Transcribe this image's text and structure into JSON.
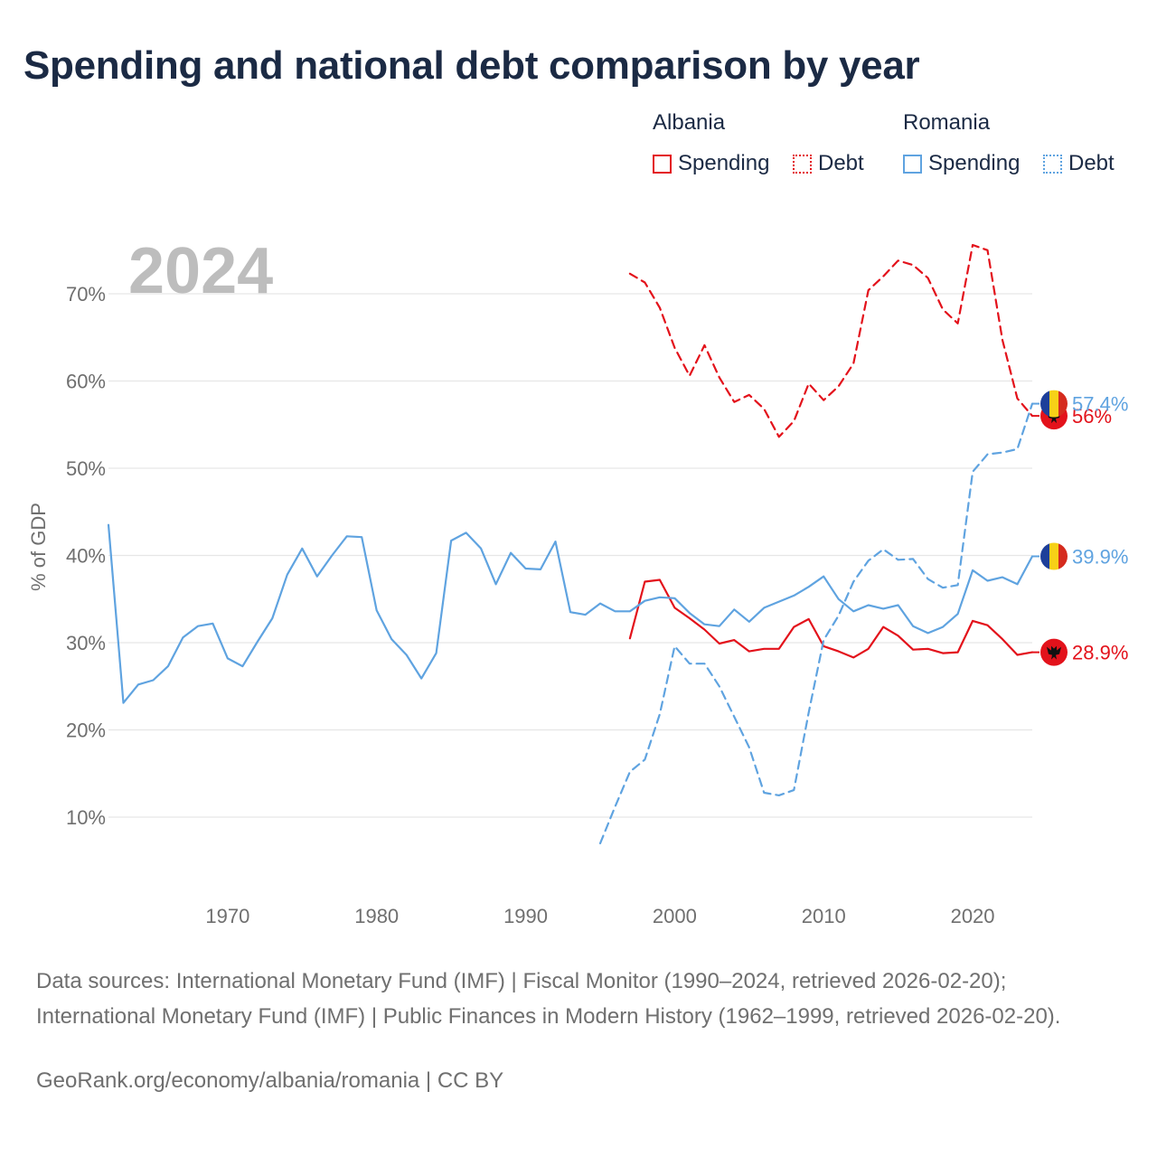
{
  "title": "Spending and national debt comparison by year",
  "legend": {
    "groups": [
      {
        "country": "Albania",
        "spending_label": "Spending",
        "debt_label": "Debt",
        "color": "#e3121b"
      },
      {
        "country": "Romania",
        "spending_label": "Spending",
        "debt_label": "Debt",
        "color": "#5fa3e0"
      }
    ]
  },
  "footer": {
    "sources": "Data sources: International Monetary Fund (IMF) | Fiscal Monitor (1990–2024, retrieved 2026-02-20); International Monetary Fund (IMF) | Public Finances in Modern History (1962–1999, retrieved 2026-02-20).",
    "credit": "GeoRank.org/economy/albania/romania | CC BY"
  },
  "chart_data": {
    "type": "line",
    "year_watermark": "2024",
    "ylabel": "% of GDP",
    "xlim": [
      1962,
      2024
    ],
    "ylim": [
      3,
      77
    ],
    "yticks": [
      10,
      20,
      30,
      40,
      50,
      60,
      70
    ],
    "ytick_labels": [
      "10%",
      "20%",
      "30%",
      "40%",
      "50%",
      "60%",
      "70%"
    ],
    "xticks": [
      1970,
      1980,
      1990,
      2000,
      2010,
      2020
    ],
    "xtick_labels": [
      "1970",
      "1980",
      "1990",
      "2000",
      "2010",
      "2020"
    ],
    "series": [
      {
        "name": "Albania Spending",
        "country": "Albania",
        "metric": "Spending",
        "color": "#e3121b",
        "dashed": false,
        "end_label": "28.9%",
        "start_year": 1997,
        "values": [
          30.5,
          37.0,
          37.2,
          34.0,
          32.8,
          31.5,
          29.9,
          30.3,
          29.0,
          29.3,
          29.3,
          31.8,
          32.7,
          29.6,
          29.0,
          28.3,
          29.3,
          31.8,
          30.8,
          29.2,
          29.3,
          28.8,
          28.9,
          32.5,
          32.0,
          30.4,
          28.6,
          28.9
        ]
      },
      {
        "name": "Albania Debt",
        "country": "Albania",
        "metric": "Debt",
        "color": "#e3121b",
        "dashed": true,
        "end_label": "56%",
        "start_year": 1997,
        "values": [
          72.3,
          71.3,
          68.4,
          63.8,
          60.6,
          64.1,
          60.4,
          57.6,
          58.4,
          56.8,
          53.6,
          55.4,
          59.7,
          57.8,
          59.4,
          62.0,
          70.4,
          72.0,
          73.8,
          73.3,
          71.8,
          68.2,
          66.6,
          75.6,
          75.0,
          64.7,
          58.0,
          56.0
        ]
      },
      {
        "name": "Romania Spending",
        "country": "Romania",
        "metric": "Spending",
        "color": "#5fa3e0",
        "dashed": false,
        "end_label": "39.9%",
        "start_year": 1962,
        "values": [
          43.5,
          23.1,
          25.2,
          25.7,
          27.3,
          30.6,
          31.9,
          32.2,
          28.2,
          27.3,
          30.1,
          32.8,
          37.8,
          40.8,
          37.6,
          40.0,
          42.2,
          42.1,
          33.7,
          30.4,
          28.6,
          25.9,
          28.8,
          41.7,
          42.6,
          40.8,
          36.7,
          40.3,
          38.5,
          38.4,
          41.6,
          33.5,
          33.2,
          34.5,
          33.6,
          33.6,
          34.8,
          35.2,
          35.1,
          33.4,
          32.1,
          31.9,
          33.8,
          32.4,
          34.0,
          34.7,
          35.4,
          36.4,
          37.6,
          35.0,
          33.6,
          34.3,
          33.9,
          34.3,
          31.9,
          31.1,
          31.8,
          33.3,
          38.3,
          37.1,
          37.5,
          36.7,
          39.9
        ]
      },
      {
        "name": "Romania Debt",
        "country": "Romania",
        "metric": "Debt",
        "color": "#5fa3e0",
        "dashed": true,
        "end_label": "57.4%",
        "start_year": 1995,
        "values": [
          7.0,
          11.2,
          15.2,
          16.6,
          21.8,
          29.6,
          27.6,
          27.6,
          25.0,
          21.5,
          18.0,
          12.8,
          12.5,
          13.1,
          22.0,
          30.3,
          33.1,
          37.0,
          39.4,
          40.7,
          39.5,
          39.6,
          37.3,
          36.3,
          36.6,
          49.6,
          51.6,
          51.8,
          52.2,
          57.4
        ]
      }
    ]
  }
}
